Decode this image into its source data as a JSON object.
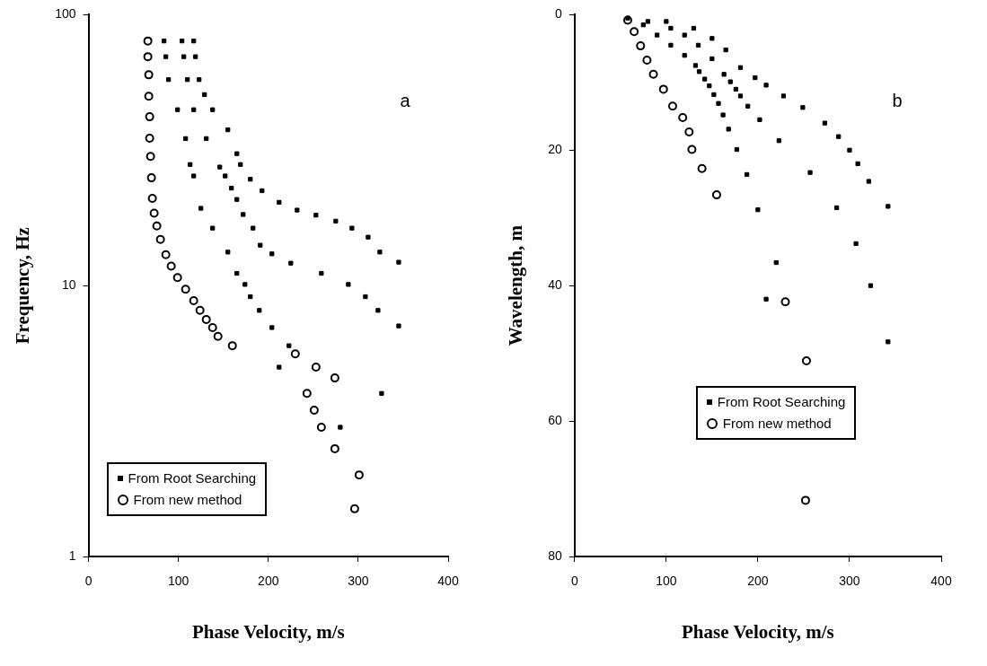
{
  "chart_data": [
    {
      "type": "scatter",
      "xlabel": "Phase Velocity, m/s",
      "ylabel": "Frequency, Hz",
      "annotations": [
        "a"
      ],
      "log": "y",
      "grid": false,
      "legend": "bottom left",
      "xlim": [
        0,
        400
      ],
      "xticks": [
        0,
        100,
        200,
        300,
        400
      ],
      "ylim": [
        1,
        100
      ],
      "yticks": [
        1,
        10,
        100
      ],
      "series": [
        {
          "name": "From Root Searching",
          "color": "#000000",
          "marker": "square",
          "x": [
            84,
            86,
            89,
            99,
            108,
            113,
            117,
            125,
            138,
            155,
            165,
            174,
            180,
            190,
            204,
            223,
            212,
            280,
            104,
            106,
            110,
            117,
            131,
            146,
            152,
            159,
            165,
            172,
            183,
            191,
            204,
            225,
            259,
            289,
            308,
            322,
            345,
            117,
            119,
            123,
            129,
            138,
            155,
            165,
            169,
            180,
            193,
            212,
            232,
            253,
            275,
            293,
            311,
            324,
            345,
            326
          ],
          "values": [
            80,
            70,
            57.6,
            44.6,
            34.9,
            28,
            25.4,
            19.3,
            16.3,
            13.3,
            11.1,
            10.1,
            9.1,
            8.1,
            7,
            6,
            5,
            3,
            80,
            70,
            57.6,
            44.6,
            34.9,
            27.4,
            25.4,
            22.9,
            20.8,
            18.3,
            16.3,
            14.1,
            13.1,
            12.1,
            11.1,
            10.1,
            9.1,
            8.1,
            7.1,
            80,
            70,
            57.6,
            50.7,
            44.6,
            37.6,
            30.7,
            28,
            24.7,
            22.4,
            20.3,
            19,
            18.2,
            17.3,
            16.3,
            15.1,
            13.3,
            12.2,
            4
          ]
        },
        {
          "name": "From new method",
          "color": "#000000",
          "marker": "circle",
          "x": [
            66,
            66,
            67,
            67,
            68,
            68,
            69,
            70,
            71,
            73,
            76,
            80,
            86,
            92,
            99,
            108,
            117,
            124,
            131,
            138,
            144,
            160,
            230,
            253,
            274,
            243,
            251,
            259,
            274,
            301,
            296
          ],
          "values": [
            80,
            70,
            60,
            50,
            42,
            35,
            30,
            25,
            21,
            18.5,
            16.6,
            14.8,
            13,
            11.8,
            10.7,
            9.7,
            8.8,
            8.1,
            7.5,
            7,
            6.5,
            6,
            5.6,
            5,
            4.56,
            4,
            3.47,
            3,
            2.5,
            2,
            1.5
          ]
        }
      ]
    },
    {
      "type": "scatter",
      "xlabel": "Phase Velocity, m/s",
      "ylabel": "Wavelength, m",
      "annotations": [
        "b"
      ],
      "grid": false,
      "legend": "bottom",
      "xlim": [
        0,
        400
      ],
      "xticks": [
        0,
        100,
        200,
        300,
        400
      ],
      "ylim": [
        80,
        0
      ],
      "yticks": [
        0,
        20,
        40,
        60,
        80
      ],
      "series": [
        {
          "name": "From Root Searching",
          "color": "#000000",
          "marker": "square",
          "x": [
            58,
            75,
            90,
            105,
            120,
            132,
            136,
            142,
            147,
            152,
            157,
            162,
            168,
            177,
            188,
            200,
            220,
            209,
            80,
            105,
            120,
            135,
            150,
            163,
            170,
            176,
            181,
            189,
            202,
            223,
            257,
            286,
            307,
            323,
            342,
            100,
            130,
            150,
            165,
            181,
            197,
            209,
            228,
            249,
            273,
            288,
            300,
            309,
            321,
            342
          ],
          "values": [
            0.5,
            1.5,
            3,
            4.5,
            6,
            7.5,
            8.4,
            9.5,
            10.5,
            11.8,
            13.1,
            14.8,
            16.9,
            19.9,
            23.6,
            28.8,
            36.6,
            42,
            1,
            2,
            3,
            4.5,
            6.5,
            8.8,
            9.9,
            11,
            12,
            13.5,
            15.5,
            18.6,
            23.3,
            28.5,
            33.8,
            40,
            48.3,
            1,
            2,
            3.5,
            5.2,
            7.8,
            9.3,
            10.4,
            12,
            13.7,
            16,
            18,
            20,
            22,
            24.6,
            28.3
          ]
        },
        {
          "name": "From new method",
          "color": "#000000",
          "marker": "circle",
          "x": [
            58,
            65,
            72,
            79,
            86,
            97,
            107,
            118,
            125,
            128,
            139,
            155,
            230,
            253,
            252
          ],
          "values": [
            0.8,
            2.5,
            4.6,
            6.7,
            8.8,
            11,
            13.5,
            15.2,
            17.3,
            19.9,
            22.7,
            26.6,
            42.4,
            51.1,
            71.7
          ]
        }
      ]
    }
  ]
}
